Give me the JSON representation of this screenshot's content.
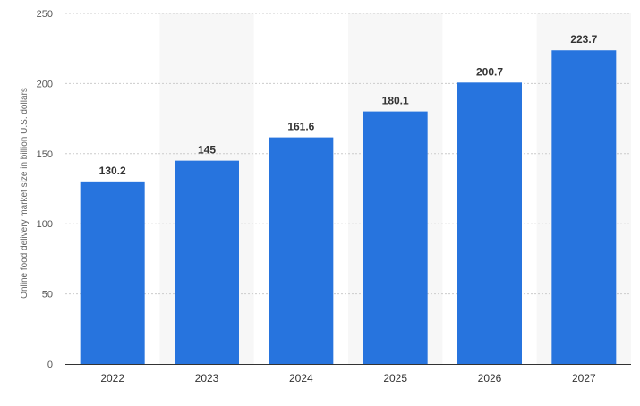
{
  "chart_data": {
    "type": "bar",
    "title": "",
    "xlabel": "",
    "ylabel": "Online food delivery market size in billion U.S. dollars",
    "categories": [
      "2022",
      "2023",
      "2024",
      "2025",
      "2026",
      "2027"
    ],
    "values": [
      130.2,
      145,
      161.6,
      180.1,
      200.7,
      223.7
    ],
    "value_labels": [
      "130.2",
      "145",
      "161.6",
      "180.1",
      "200.7",
      "223.7"
    ],
    "ylim": [
      0,
      250
    ],
    "yticks": [
      0,
      50,
      100,
      150,
      200,
      250
    ],
    "grid": true,
    "legend": "none",
    "colors": {
      "bar": "#2774de",
      "grid": "#cccccc",
      "band": "#f7f7f7",
      "axis": "#333333"
    }
  }
}
